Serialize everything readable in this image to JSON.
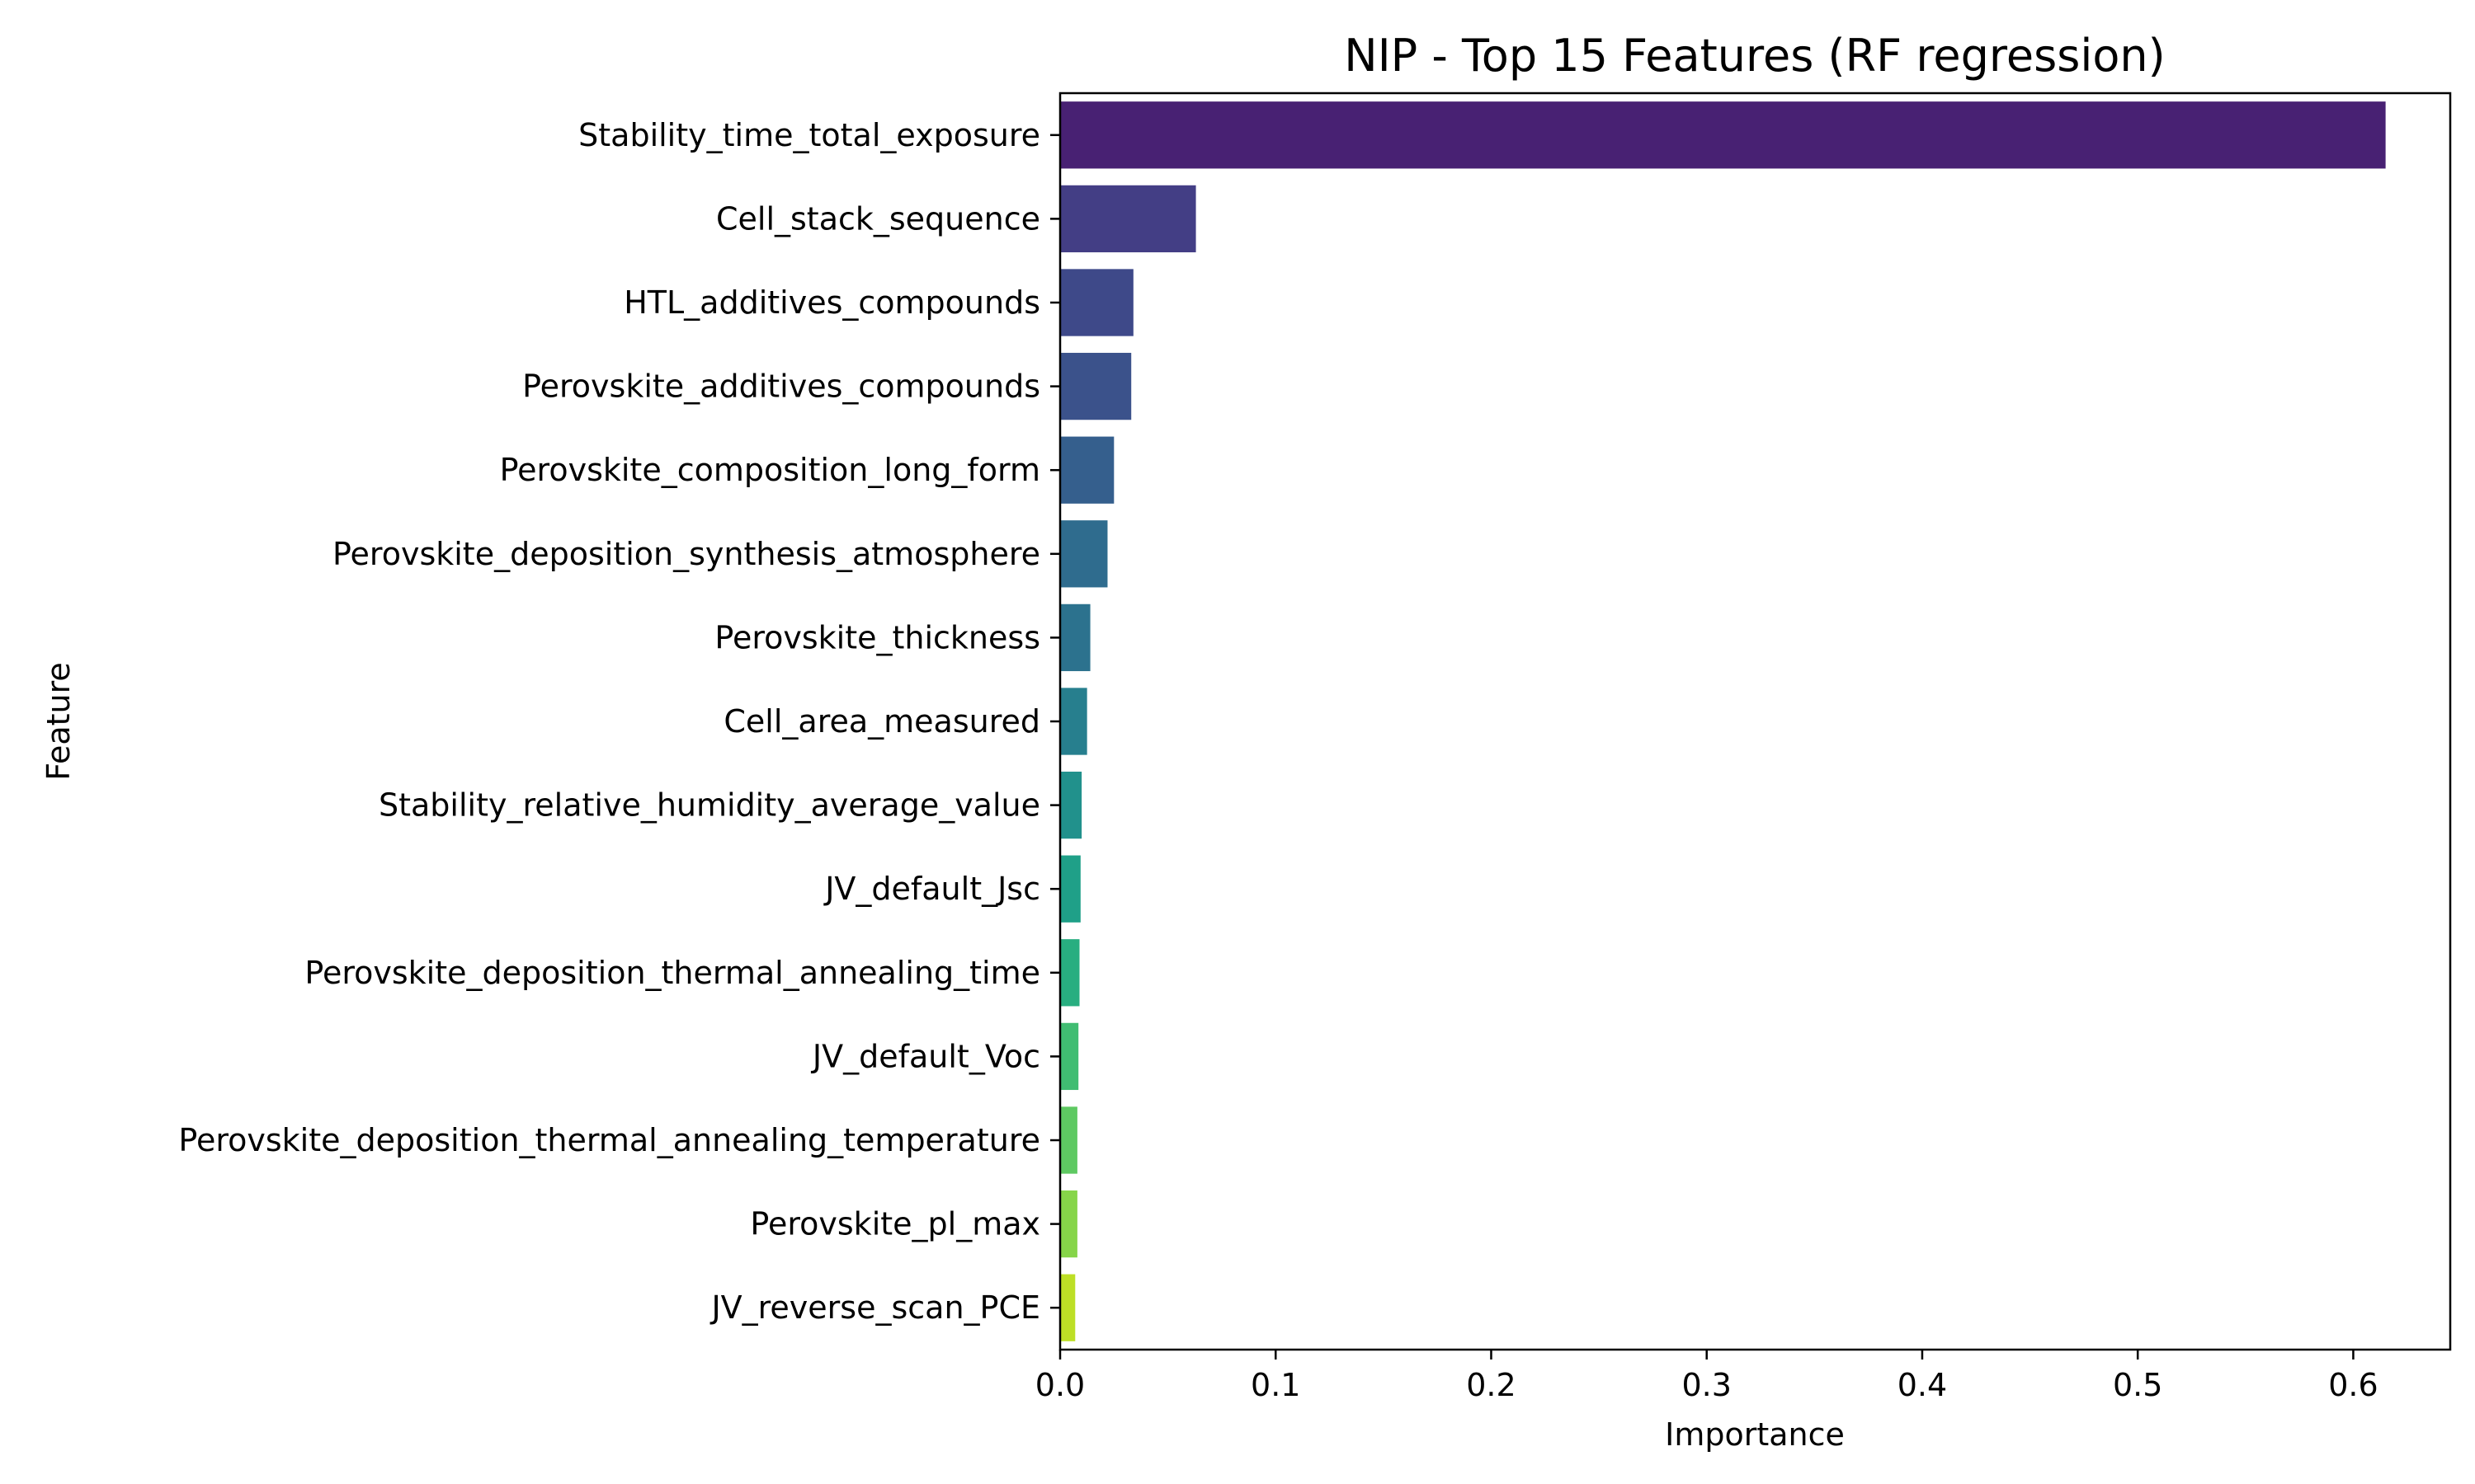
{
  "chart_data": {
    "type": "bar",
    "orientation": "horizontal",
    "title": "NIP - Top 15 Features (RF regression)",
    "xlabel": "Importance",
    "ylabel": "Feature",
    "xlim": [
      0,
      0.645
    ],
    "xticks": [
      0.0,
      0.1,
      0.2,
      0.3,
      0.4,
      0.5,
      0.6
    ],
    "xtick_labels": [
      "0.0",
      "0.1",
      "0.2",
      "0.3",
      "0.4",
      "0.5",
      "0.6"
    ],
    "grid": false,
    "legend": "none",
    "categories": [
      "Stability_time_total_exposure",
      "Cell_stack_sequence",
      "HTL_additives_compounds",
      "Perovskite_additives_compounds",
      "Perovskite_composition_long_form",
      "Perovskite_deposition_synthesis_atmosphere",
      "Perovskite_thickness",
      "Cell_area_measured",
      "Stability_relative_humidity_average_value",
      "JV_default_Jsc",
      "Perovskite_deposition_thermal_annealing_time",
      "JV_default_Voc",
      "Perovskite_deposition_thermal_annealing_temperature",
      "Perovskite_pl_max",
      "JV_reverse_scan_PCE"
    ],
    "values": [
      0.615,
      0.063,
      0.034,
      0.033,
      0.025,
      0.022,
      0.014,
      0.0125,
      0.01,
      0.0095,
      0.009,
      0.0085,
      0.008,
      0.008,
      0.007
    ],
    "colors": [
      "#482173",
      "#433e85",
      "#3e4989",
      "#3b528b",
      "#355f8d",
      "#2f6c8e",
      "#2c728e",
      "#277f8e",
      "#21918c",
      "#1fa088",
      "#28ae80",
      "#40bd72",
      "#5ec962",
      "#86d549",
      "#bddf26"
    ]
  }
}
